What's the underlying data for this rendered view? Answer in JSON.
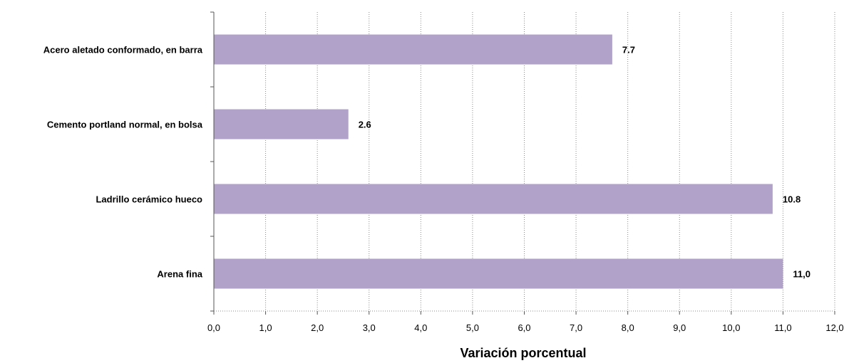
{
  "chart_data": {
    "type": "bar",
    "orientation": "horizontal",
    "categories": [
      "Acero aletado conformado, en barra",
      "Cemento portland normal, en bolsa",
      "Ladrillo cerámico hueco",
      "Arena fina"
    ],
    "values": [
      7.7,
      2.6,
      10.8,
      11.0
    ],
    "data_labels": [
      "7.7",
      "2.6",
      "10.8",
      "11,0"
    ],
    "xlabel": "Variación porcentual",
    "ylabel": "",
    "xlim": [
      0,
      12
    ],
    "x_ticks": [
      0,
      1,
      2,
      3,
      4,
      5,
      6,
      7,
      8,
      9,
      10,
      11,
      12
    ],
    "x_tick_labels": [
      "0,0",
      "1,0",
      "2,0",
      "3,0",
      "4,0",
      "5,0",
      "6,0",
      "7,0",
      "8,0",
      "9,0",
      "10,0",
      "11,0",
      "12,0"
    ],
    "grid": true,
    "legend": "none",
    "bar_color": "#b0a2c8"
  }
}
